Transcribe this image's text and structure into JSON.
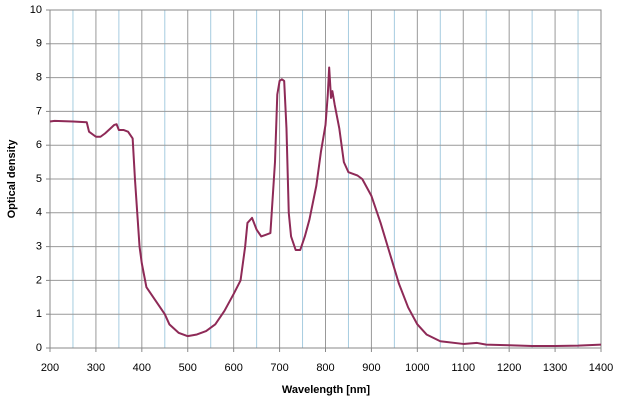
{
  "chart_data": {
    "type": "line",
    "x_label": "Wavelength [nm]",
    "y_label": "Optical density",
    "xlim": [
      200,
      1400
    ],
    "xticks": [
      200,
      300,
      400,
      500,
      600,
      700,
      800,
      900,
      1000,
      1100,
      1200,
      1300,
      1400
    ],
    "ylim": [
      0,
      10
    ],
    "yticks": [
      0,
      1,
      2,
      3,
      4,
      5,
      6,
      7,
      8,
      9,
      10
    ],
    "grid": true,
    "series": [
      {
        "color": "#8e2a57",
        "x": [
          200,
          210,
          250,
          280,
          285,
          300,
          310,
          320,
          340,
          345,
          350,
          360,
          370,
          380,
          385,
          390,
          395,
          400,
          410,
          430,
          450,
          460,
          480,
          500,
          520,
          540,
          560,
          580,
          600,
          615,
          625,
          630,
          640,
          650,
          660,
          670,
          680,
          690,
          695,
          700,
          705,
          710,
          715,
          720,
          725,
          735,
          745,
          755,
          765,
          780,
          790,
          800,
          805,
          808,
          812,
          815,
          820,
          830,
          840,
          850,
          870,
          880,
          900,
          920,
          940,
          960,
          980,
          1000,
          1020,
          1050,
          1100,
          1130,
          1150,
          1200,
          1250,
          1300,
          1350,
          1400
        ],
        "values": [
          6.7,
          6.72,
          6.7,
          6.68,
          6.4,
          6.25,
          6.25,
          6.35,
          6.6,
          6.62,
          6.45,
          6.45,
          6.4,
          6.2,
          5.0,
          4.0,
          3.0,
          2.5,
          1.8,
          1.4,
          1.0,
          0.7,
          0.45,
          0.35,
          0.4,
          0.5,
          0.7,
          1.1,
          1.6,
          2.0,
          3.0,
          3.7,
          3.85,
          3.5,
          3.3,
          3.35,
          3.4,
          5.5,
          7.5,
          7.9,
          7.95,
          7.9,
          6.5,
          4.0,
          3.3,
          2.9,
          2.9,
          3.3,
          3.8,
          4.8,
          5.8,
          6.6,
          7.5,
          8.3,
          7.4,
          7.6,
          7.2,
          6.5,
          5.5,
          5.2,
          5.1,
          5.0,
          4.5,
          3.7,
          2.8,
          1.9,
          1.2,
          0.7,
          0.4,
          0.2,
          0.12,
          0.15,
          0.1,
          0.08,
          0.06,
          0.06,
          0.07,
          0.1
        ]
      }
    ]
  }
}
